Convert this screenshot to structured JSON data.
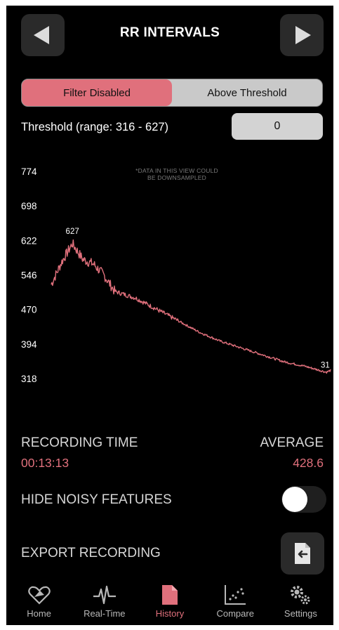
{
  "header": {
    "title": "RR INTERVALS"
  },
  "filter": {
    "options": [
      "Filter Disabled",
      "Above Threshold"
    ],
    "selected": "Filter Disabled"
  },
  "threshold": {
    "label": "Threshold (range: 316 - 627)",
    "value": "0"
  },
  "chart_note": {
    "line1": "*DATA IN THIS VIEW COULD",
    "line2": "BE DOWNSAMPLED"
  },
  "chart_data": {
    "type": "line",
    "ytick_labels": [
      "774",
      "698",
      "622",
      "546",
      "470",
      "394",
      "318"
    ],
    "ylim": [
      318,
      774
    ],
    "x": [
      0,
      0.5,
      1,
      1.5,
      2,
      2.5,
      3,
      4,
      5,
      6,
      7,
      8,
      9,
      10,
      11,
      12,
      13,
      13.2
    ],
    "y": [
      525,
      575,
      615,
      580,
      570,
      545,
      510,
      495,
      470,
      445,
      420,
      400,
      385,
      370,
      355,
      345,
      332,
      336
    ],
    "max_label": "627",
    "end_label": "31",
    "color": "#e0707c"
  },
  "stats": {
    "recording_time_label": "RECORDING TIME",
    "recording_time_value": "00:13:13",
    "average_label": "AVERAGE",
    "average_value": "428.6"
  },
  "settings": {
    "hide_noisy_label": "HIDE NOISY FEATURES",
    "hide_noisy_on": false,
    "export_label": "EXPORT RECORDING"
  },
  "tabs": [
    {
      "label": "Home",
      "icon": "heart-icon"
    },
    {
      "label": "Real-Time",
      "icon": "heartbeat-icon"
    },
    {
      "label": "History",
      "icon": "document-icon"
    },
    {
      "label": "Compare",
      "icon": "scatter-icon"
    },
    {
      "label": "Settings",
      "icon": "gears-icon"
    }
  ],
  "active_tab": "History",
  "colors": {
    "accent": "#e0707c",
    "background": "#000000"
  }
}
